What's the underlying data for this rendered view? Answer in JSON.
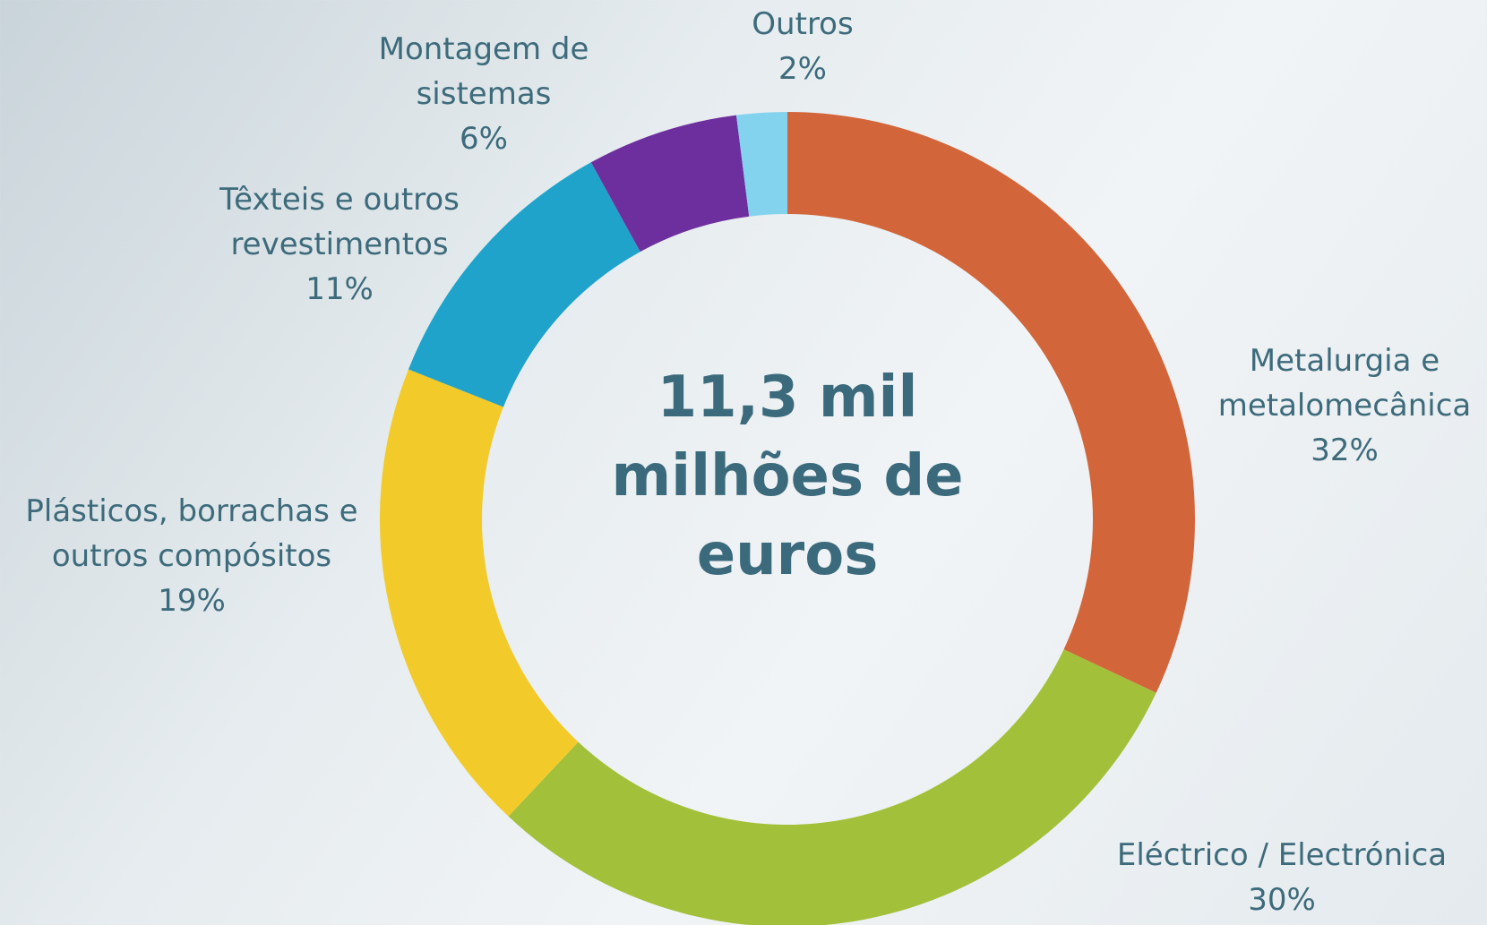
{
  "chart_data": {
    "type": "donut",
    "categories": [
      "Metalurgia e metalomecânica",
      "Eléctrico / Electrónica",
      "Plásticos, borrachas e outros compósitos",
      "Têxteis e outros revestimentos",
      "Montagem de sistemas",
      "Outros"
    ],
    "values": [
      32,
      30,
      19,
      11,
      6,
      2
    ],
    "value_labels": [
      "32%",
      "30%",
      "19%",
      "11%",
      "6%",
      "2%"
    ],
    "colors": [
      "#d2663a",
      "#a3c03a",
      "#f2cb2a",
      "#20a3cb",
      "#6e2f9e",
      "#84d3ee"
    ],
    "annotation": "11,3 mil milhões de euros"
  }
}
